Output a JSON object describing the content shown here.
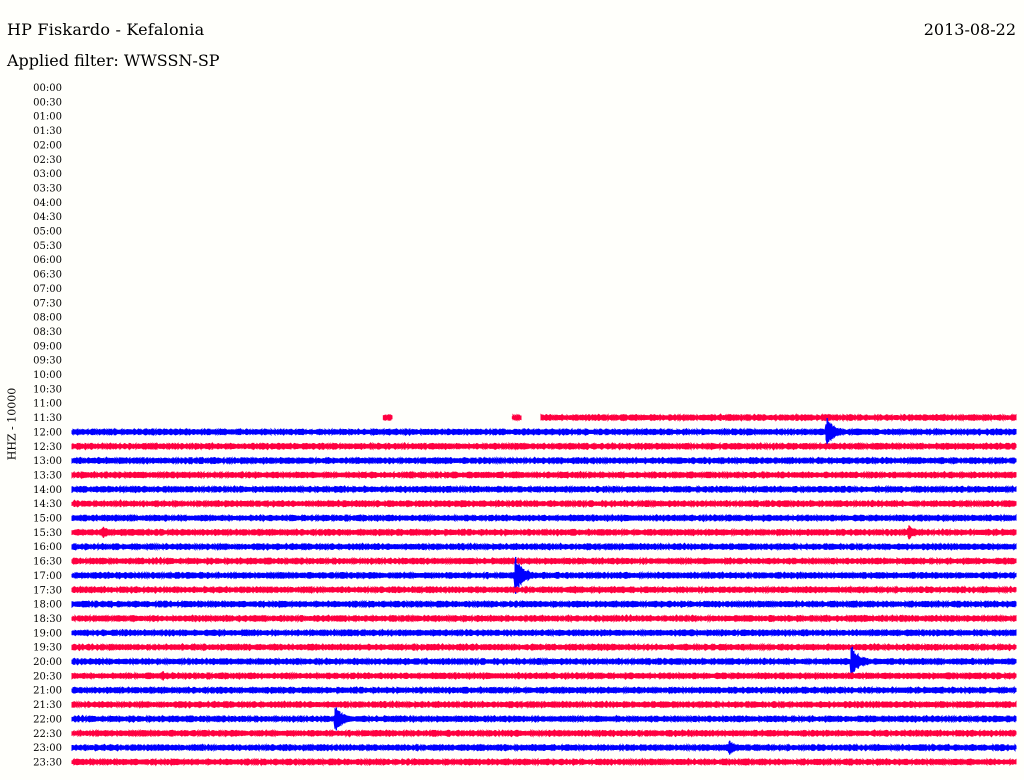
{
  "header": {
    "station": "HP Fiskardo - Kefalonia",
    "date": "2013-08-22",
    "filter": "Applied filter: WWSSN-SP",
    "channel": "HHZ - 10000"
  },
  "colors": {
    "even": "#0000ff",
    "odd": "#ff0040",
    "background": "#fffffb"
  },
  "chart_data": {
    "type": "line",
    "title": "HP Fiskardo - Kefalonia",
    "ylabel": "HHZ - 10000",
    "row_labels": [
      "00:00",
      "00:30",
      "01:00",
      "01:30",
      "02:00",
      "02:30",
      "03:00",
      "03:30",
      "04:00",
      "04:30",
      "05:00",
      "05:30",
      "06:00",
      "06:30",
      "07:00",
      "07:30",
      "08:00",
      "08:30",
      "09:00",
      "09:30",
      "10:00",
      "10:30",
      "11:00",
      "11:30",
      "12:00",
      "12:30",
      "13:00",
      "13:30",
      "14:00",
      "14:30",
      "15:00",
      "15:30",
      "16:00",
      "16:30",
      "17:00",
      "17:30",
      "18:00",
      "18:30",
      "19:00",
      "19:30",
      "20:00",
      "20:30",
      "21:00",
      "21:30",
      "22:00",
      "22:30",
      "23:00",
      "23:30"
    ],
    "row_minutes": 30,
    "trace_start": {
      "row": "11:30",
      "minute": 0.0
    },
    "gaps": [
      {
        "row": "11:30",
        "from_minute": 0.0,
        "to_minute": 9.9
      },
      {
        "row": "11:30",
        "from_minute": 10.2,
        "to_minute": 14.0
      },
      {
        "row": "11:30",
        "from_minute": 14.3,
        "to_minute": 14.9
      }
    ],
    "events": [
      {
        "row": "11:30",
        "minute": 9.9,
        "amplitude": 0.5
      },
      {
        "row": "11:30",
        "minute": 14.0,
        "amplitude": 0.3
      },
      {
        "row": "12:00",
        "minute": 4.9,
        "amplitude": 0.6
      },
      {
        "row": "12:00",
        "minute": 8.2,
        "amplitude": 0.4
      },
      {
        "row": "12:00",
        "minute": 8.8,
        "amplitude": 0.5
      },
      {
        "row": "12:00",
        "minute": 13.7,
        "amplitude": 0.7
      },
      {
        "row": "12:00",
        "minute": 24.0,
        "amplitude": 3.0
      },
      {
        "row": "12:30",
        "minute": 18.2,
        "amplitude": 0.4
      },
      {
        "row": "13:00",
        "minute": 8.1,
        "amplitude": 0.4
      },
      {
        "row": "15:00",
        "minute": 5.8,
        "amplitude": 0.4
      },
      {
        "row": "15:30",
        "minute": 1.0,
        "amplitude": 1.2
      },
      {
        "row": "15:30",
        "minute": 26.6,
        "amplitude": 1.5
      },
      {
        "row": "17:00",
        "minute": 14.1,
        "amplitude": 4.0
      },
      {
        "row": "17:30",
        "minute": 16.0,
        "amplitude": 0.8
      },
      {
        "row": "19:30",
        "minute": 9.0,
        "amplitude": 0.4
      },
      {
        "row": "20:00",
        "minute": 24.8,
        "amplitude": 3.2
      },
      {
        "row": "20:30",
        "minute": 2.9,
        "amplitude": 1.0
      },
      {
        "row": "22:00",
        "minute": 17.3,
        "amplitude": 0.5
      },
      {
        "row": "22:00",
        "minute": 8.4,
        "amplitude": 2.5
      },
      {
        "row": "23:00",
        "minute": 20.9,
        "amplitude": 1.5
      }
    ]
  }
}
